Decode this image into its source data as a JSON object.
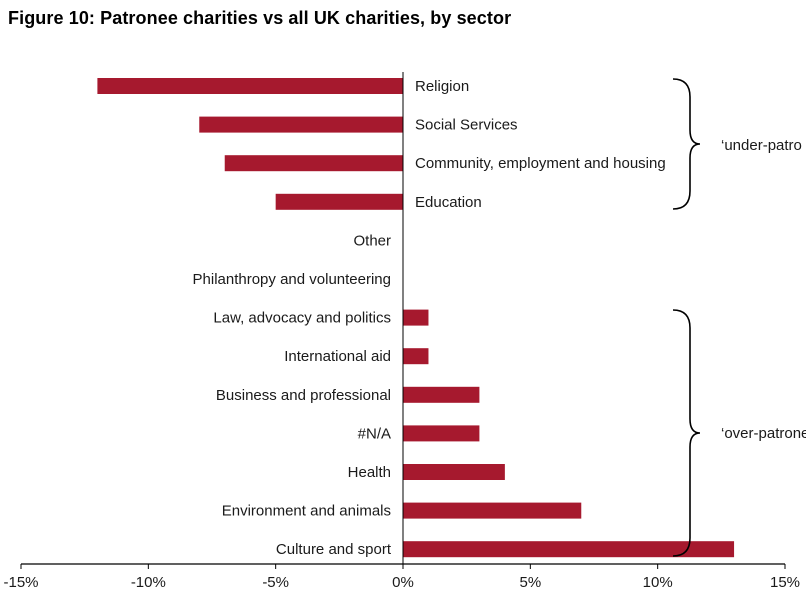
{
  "chart_data": {
    "type": "bar",
    "orientation": "horizontal",
    "title": "Figure 10: Patronee charities vs all UK charities, by sector",
    "categories": [
      "Religion",
      "Social Services",
      "Community, employment and housing",
      "Education",
      "Other",
      "Philanthropy and volunteering",
      "Law, advocacy and politics",
      "International aid",
      "Business and professional",
      "#N/A",
      "Health",
      "Environment and animals",
      "Culture and sport"
    ],
    "values": [
      -12,
      -8,
      -7,
      -5,
      0,
      0,
      1,
      1,
      3,
      3,
      4,
      7,
      13
    ],
    "xlim": [
      -15,
      15
    ],
    "xticks": [
      -15,
      -10,
      -5,
      0,
      5,
      10,
      15
    ],
    "tick_labels": [
      "-15%",
      "-10%",
      "-5%",
      "0%",
      "5%",
      "10%",
      "15%"
    ],
    "grid": false,
    "legend": "none",
    "bar_color": "#A6192E",
    "annotations": [
      {
        "text": "‘under-patro",
        "group": "negative"
      },
      {
        "text": "‘over-patrone",
        "group": "positive"
      }
    ]
  }
}
